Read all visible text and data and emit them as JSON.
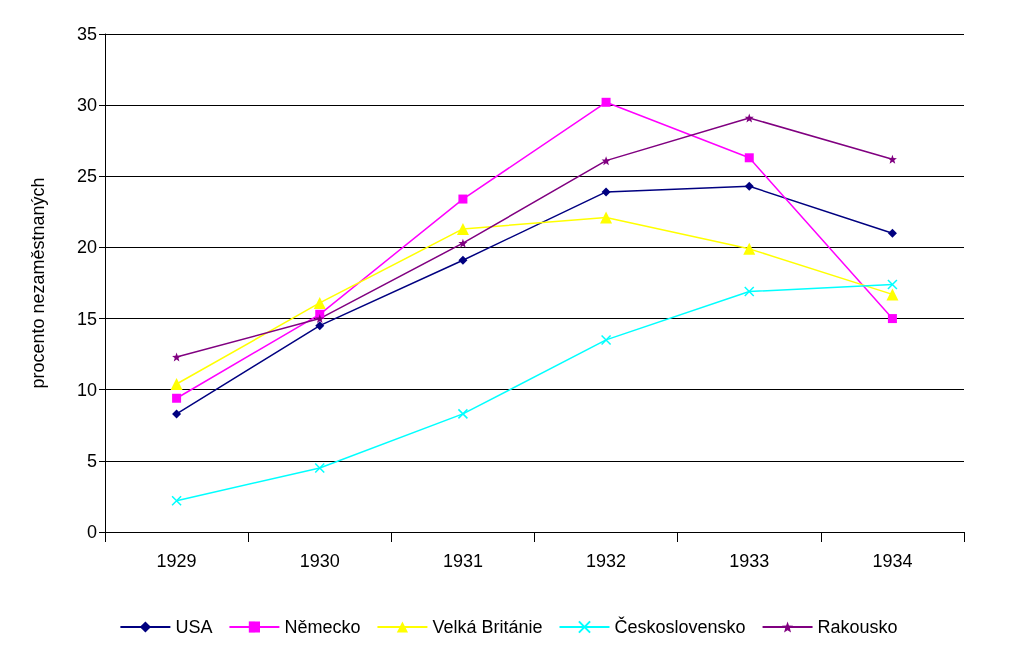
{
  "chart_data": {
    "type": "line",
    "ylabel": "procento nezaměstnaných",
    "categories": [
      "1929",
      "1930",
      "1931",
      "1932",
      "1933",
      "1934"
    ],
    "series": [
      {
        "name": "USA",
        "color": "#000080",
        "marker": "diamond",
        "values": [
          8.3,
          14.5,
          19.1,
          23.9,
          24.3,
          21.0
        ]
      },
      {
        "name": "Německo",
        "color": "#ff00ff",
        "marker": "square",
        "values": [
          9.4,
          15.3,
          23.4,
          30.2,
          26.3,
          15.0
        ]
      },
      {
        "name": "Velká Británie",
        "color": "#ffff00",
        "marker": "triangle",
        "values": [
          10.4,
          16.1,
          21.3,
          22.1,
          19.9,
          16.7
        ]
      },
      {
        "name": "Československo",
        "color": "#00ffff",
        "marker": "cross",
        "values": [
          2.2,
          4.5,
          8.3,
          13.5,
          16.9,
          17.4
        ]
      },
      {
        "name": "Rakousko",
        "color": "#800080",
        "marker": "star",
        "values": [
          12.3,
          15.0,
          20.3,
          26.1,
          29.1,
          26.2
        ]
      }
    ],
    "ylim": [
      0,
      35
    ],
    "yticks": [
      0,
      5,
      10,
      15,
      20,
      25,
      30,
      35
    ],
    "grid": "y",
    "legend": "bottom"
  }
}
